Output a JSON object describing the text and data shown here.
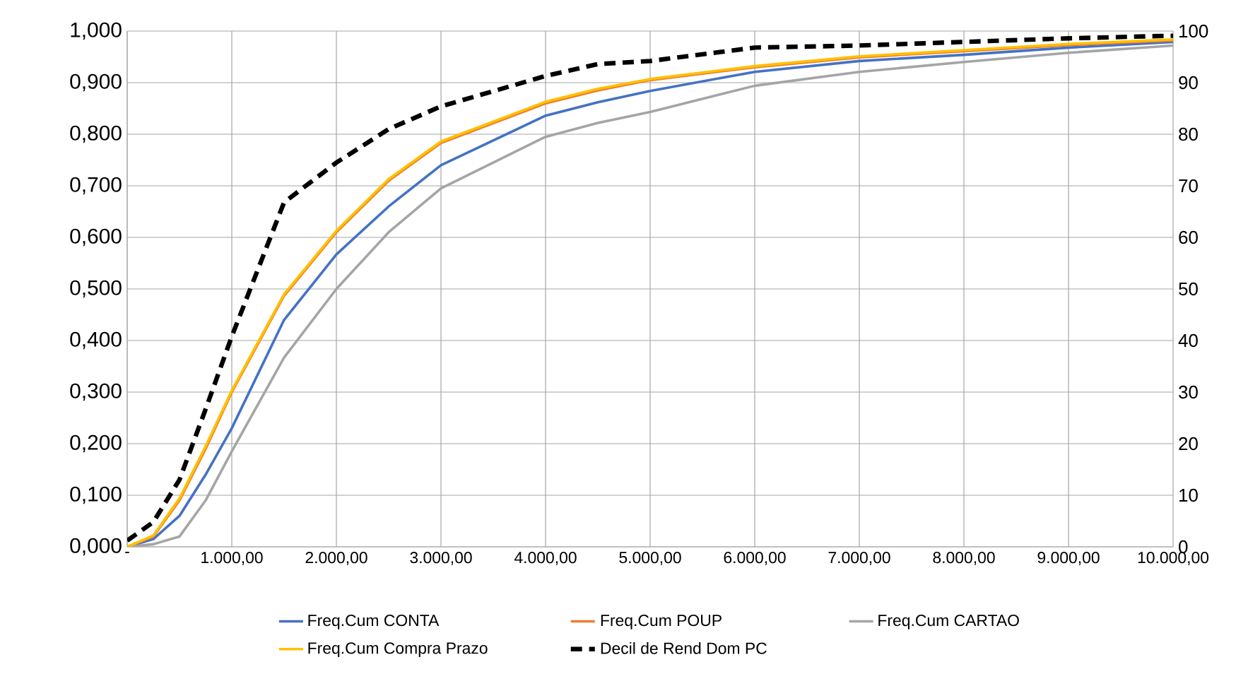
{
  "chart_data": {
    "type": "line",
    "x": [
      0,
      250,
      500,
      750,
      1000,
      1500,
      2000,
      2500,
      3000,
      4000,
      4500,
      5000,
      6000,
      7000,
      8000,
      9000,
      10000
    ],
    "series": [
      {
        "name": "Freq.Cum CONTA",
        "color": "#4472c4",
        "values": [
          0,
          0.015,
          0.06,
          0.14,
          0.23,
          0.44,
          0.567,
          0.66,
          0.74,
          0.836,
          0.862,
          0.884,
          0.921,
          0.942,
          0.954,
          0.968,
          0.979
        ]
      },
      {
        "name": "Freq.Cum POUP",
        "color": "#ed7d31",
        "values": [
          0,
          0.02,
          0.09,
          0.19,
          0.3,
          0.487,
          0.61,
          0.71,
          0.783,
          0.86,
          0.885,
          0.905,
          0.93,
          0.949,
          0.961,
          0.973,
          0.982
        ]
      },
      {
        "name": "Freq.Cum CARTAO",
        "color": "#a5a5a5",
        "values": [
          0,
          0.005,
          0.02,
          0.09,
          0.185,
          0.367,
          0.5,
          0.61,
          0.695,
          0.795,
          0.822,
          0.843,
          0.894,
          0.921,
          0.94,
          0.958,
          0.972
        ]
      },
      {
        "name": "Freq.Cum Compra Prazo",
        "color": "#ffc000",
        "values": [
          0,
          0.022,
          0.094,
          0.195,
          0.303,
          0.49,
          0.613,
          0.713,
          0.786,
          0.863,
          0.888,
          0.907,
          0.932,
          0.951,
          0.963,
          0.975,
          0.984
        ]
      },
      {
        "name": "Decil de Rend Dom PC",
        "color": "#000000",
        "axis": "y2",
        "line_style": "dashed",
        "values": [
          1.2,
          4.8,
          13,
          26.7,
          40.8,
          66.8,
          74.5,
          81,
          85.4,
          91.3,
          93.6,
          94.2,
          96.8,
          97.2,
          97.9,
          98.6,
          99.1
        ]
      }
    ],
    "xlim": [
      0,
      10000
    ],
    "xticks": [
      {
        "value": 0,
        "label": "-"
      },
      {
        "value": 1000,
        "label": "1.000,00"
      },
      {
        "value": 2000,
        "label": "2.000,00"
      },
      {
        "value": 3000,
        "label": "3.000,00"
      },
      {
        "value": 4000,
        "label": "4.000,00"
      },
      {
        "value": 5000,
        "label": "5.000,00"
      },
      {
        "value": 6000,
        "label": "6.000,00"
      },
      {
        "value": 7000,
        "label": "7.000,00"
      },
      {
        "value": 8000,
        "label": "8.000,00"
      },
      {
        "value": 9000,
        "label": "9.000,00"
      },
      {
        "value": 10000,
        "label": "10.000,00"
      }
    ],
    "ylim": [
      0,
      1
    ],
    "yticks": [
      {
        "value": 0,
        "label": "0,000"
      },
      {
        "value": 0.1,
        "label": "0,100"
      },
      {
        "value": 0.2,
        "label": "0,200"
      },
      {
        "value": 0.3,
        "label": "0,300"
      },
      {
        "value": 0.4,
        "label": "0,400"
      },
      {
        "value": 0.5,
        "label": "0,500"
      },
      {
        "value": 0.6,
        "label": "0,600"
      },
      {
        "value": 0.7,
        "label": "0,700"
      },
      {
        "value": 0.8,
        "label": "0,800"
      },
      {
        "value": 0.9,
        "label": "0,900"
      },
      {
        "value": 1,
        "label": "1,000"
      }
    ],
    "y2lim": [
      0,
      100
    ],
    "y2ticks": [
      0,
      10,
      20,
      30,
      40,
      50,
      60,
      70,
      80,
      90,
      100
    ],
    "grid": true,
    "legend": "bottom",
    "marker": "none"
  }
}
